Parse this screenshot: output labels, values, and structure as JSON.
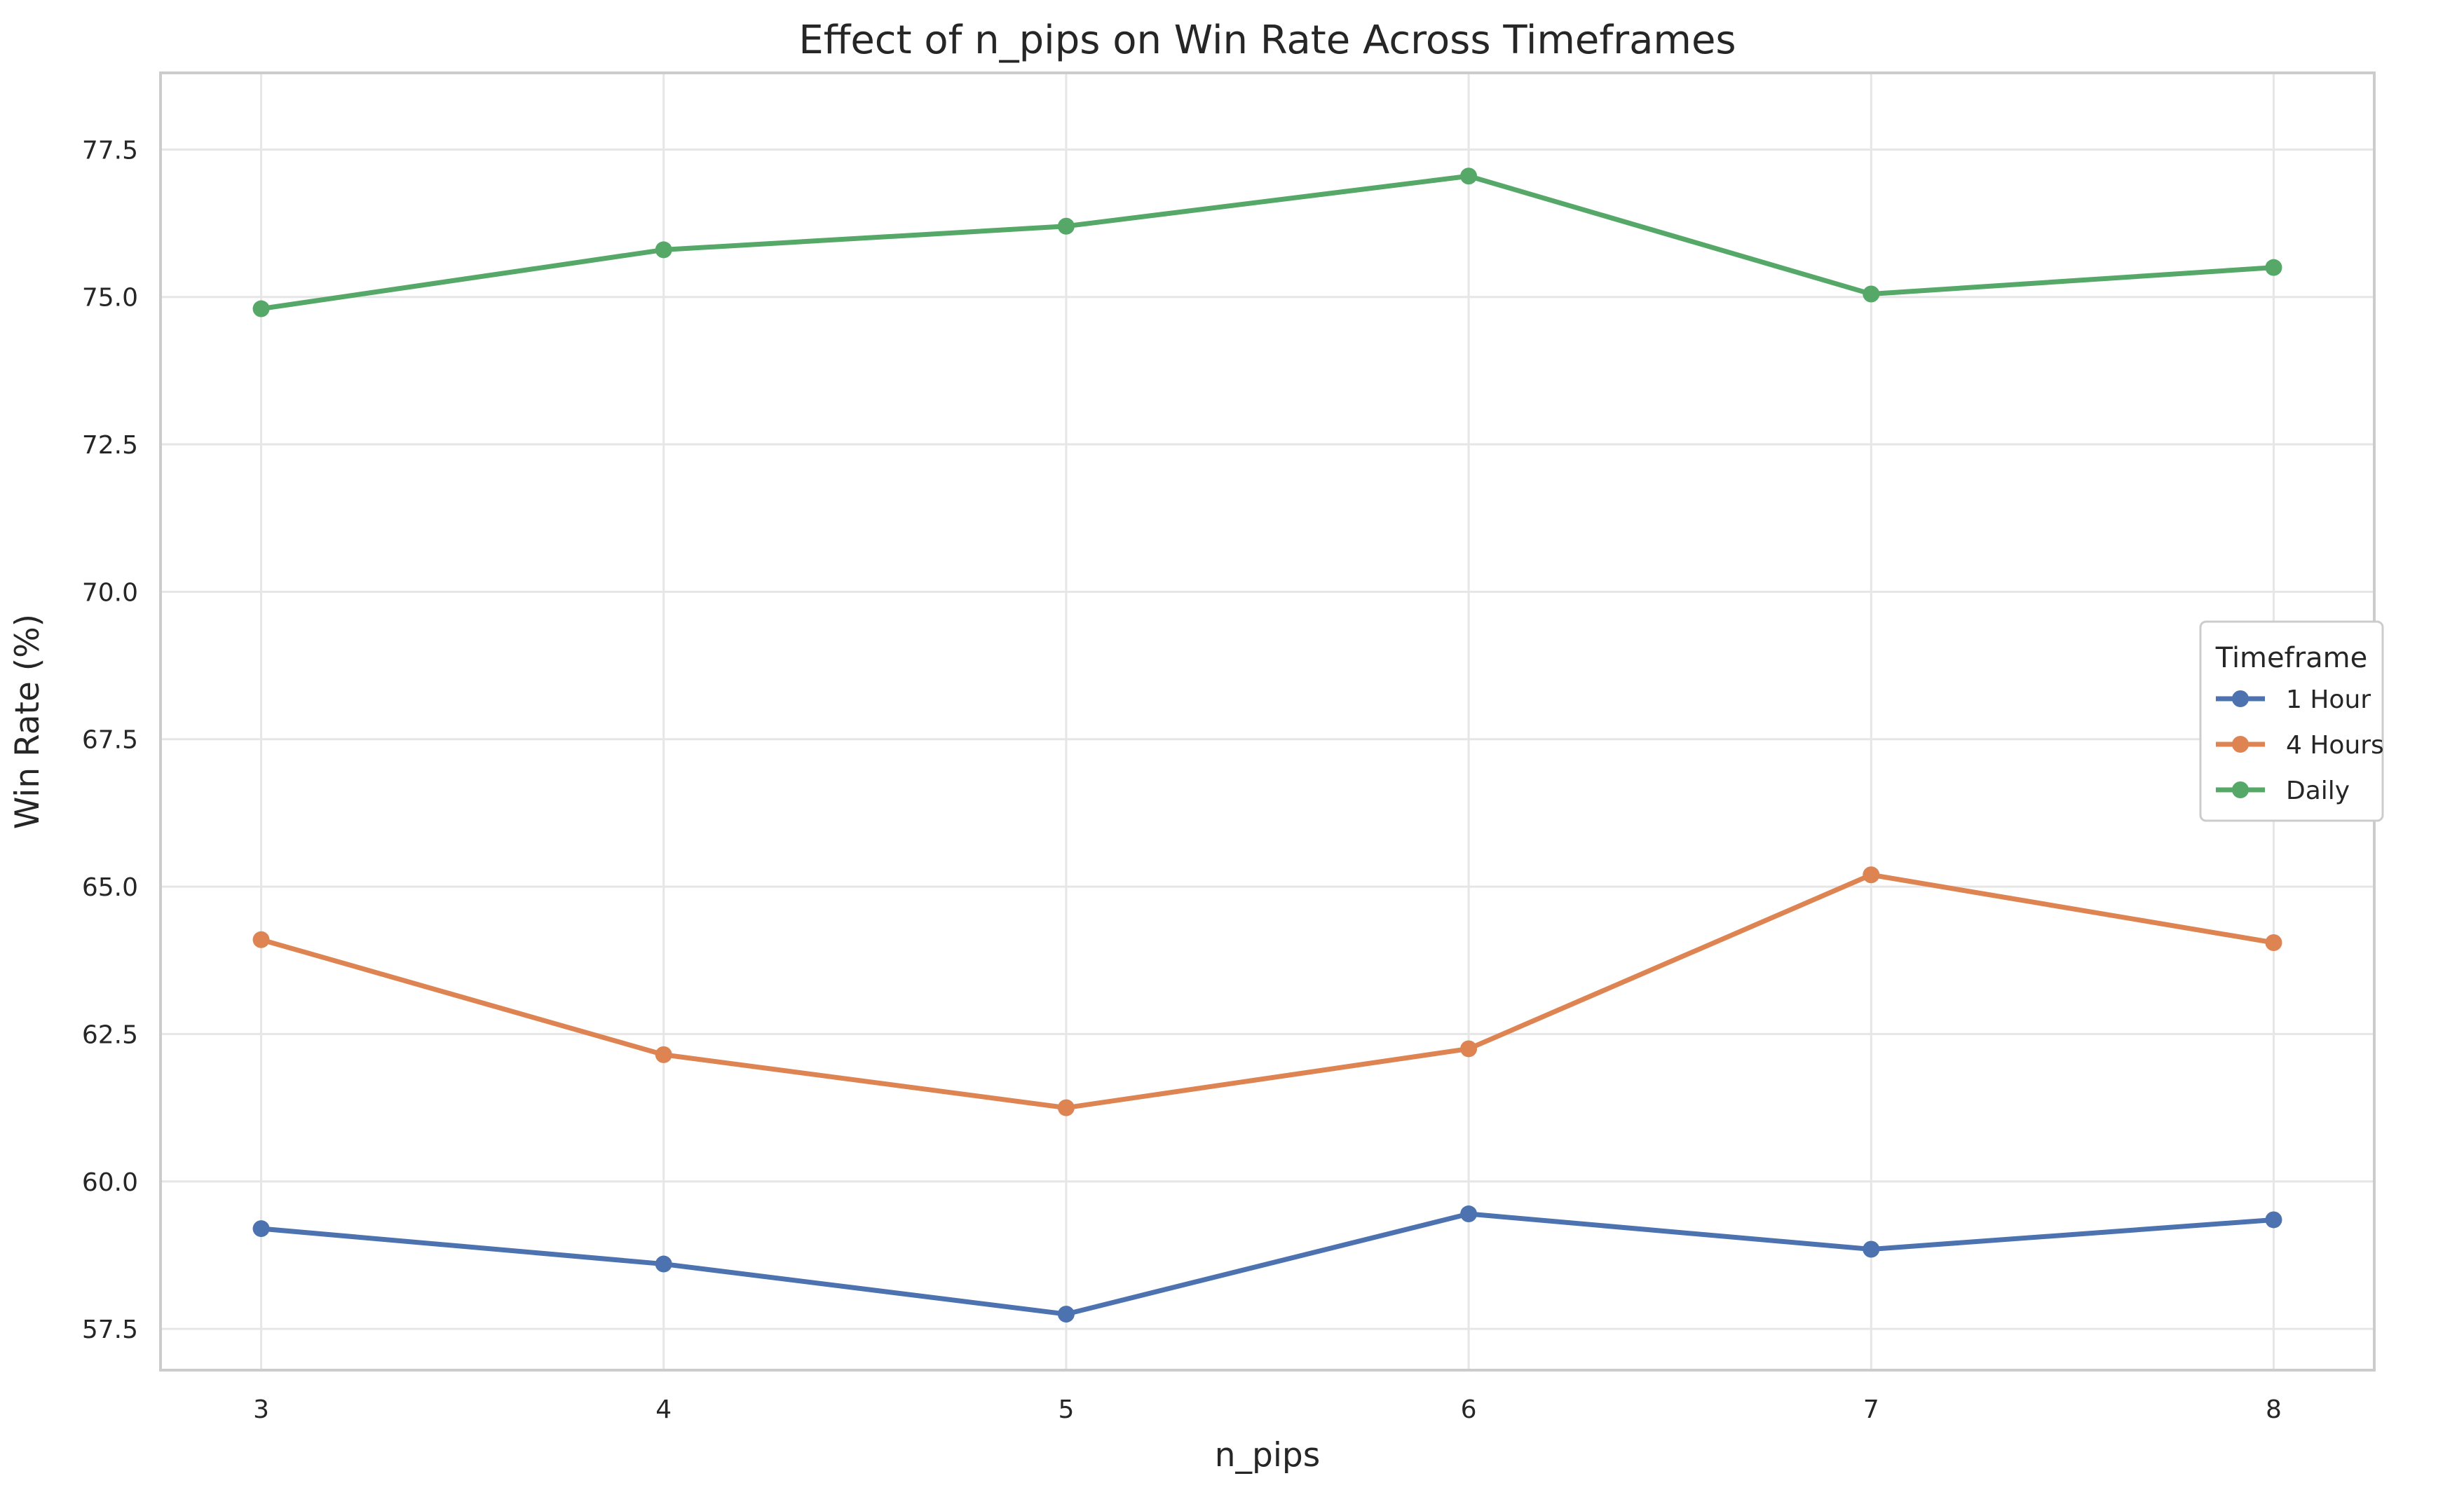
{
  "chart_data": {
    "type": "line",
    "title": "Effect of n_pips on Win Rate Across Timeframes",
    "xlabel": "n_pips",
    "ylabel": "Win Rate (%)",
    "x": [
      3,
      4,
      5,
      6,
      7,
      8
    ],
    "x_tick_labels": [
      "3",
      "4",
      "5",
      "6",
      "7",
      "8"
    ],
    "y_ticks": [
      57.5,
      60.0,
      62.5,
      65.0,
      67.5,
      70.0,
      72.5,
      75.0,
      77.5
    ],
    "y_tick_labels": [
      "57.5",
      "60.0",
      "62.5",
      "65.0",
      "67.5",
      "70.0",
      "72.5",
      "75.0",
      "77.5"
    ],
    "xlim": [
      2.75,
      8.25
    ],
    "ylim": [
      56.8,
      78.8
    ],
    "grid": true,
    "legend": {
      "title": "Timeframe",
      "placement": "center-right"
    },
    "series": [
      {
        "name": "1 Hour",
        "color": "#4c72b0",
        "values": [
          59.2,
          58.6,
          57.75,
          59.45,
          58.85,
          59.35
        ]
      },
      {
        "name": "4 Hours",
        "color": "#dd8452",
        "values": [
          64.1,
          62.15,
          61.25,
          62.25,
          65.2,
          64.05
        ]
      },
      {
        "name": "Daily",
        "color": "#55a868",
        "values": [
          74.8,
          75.8,
          76.2,
          77.05,
          75.05,
          75.5
        ]
      }
    ]
  }
}
